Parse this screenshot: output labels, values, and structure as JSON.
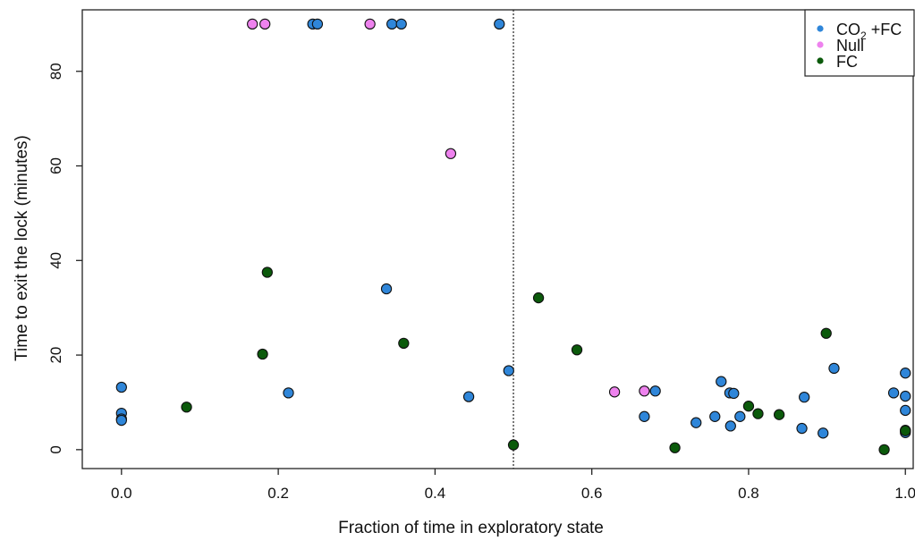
{
  "chart_data": {
    "type": "scatter",
    "xlabel": "Fraction of time in exploratory state",
    "ylabel": "Time to exit the lock (minutes)",
    "xlim": [
      -0.05,
      1.01
    ],
    "ylim": [
      -4,
      93
    ],
    "x_ticks": [
      "0.0",
      "0.2",
      "0.4",
      "0.6",
      "0.8",
      "1.0"
    ],
    "x_tick_values": [
      0,
      0.2,
      0.4,
      0.6,
      0.8,
      1.0
    ],
    "y_ticks": [
      "0",
      "20",
      "40",
      "60",
      "80"
    ],
    "y_tick_values": [
      0,
      20,
      40,
      60,
      80
    ],
    "reference_line": {
      "x": 0.5,
      "style": "dotted"
    },
    "grid": false,
    "legend_position": "top-right",
    "legend": [
      {
        "base": "CO",
        "sub": "2",
        "rest": " +FC",
        "color": "#2f86d9"
      },
      {
        "base": "Null",
        "sub": "",
        "rest": "",
        "color": "#ee82ee"
      },
      {
        "base": "FC",
        "sub": "",
        "rest": "",
        "color": "#0b5a0b"
      }
    ],
    "series": [
      {
        "name": "CO2 +FC",
        "color": "#2f86d9",
        "points": [
          [
            0.244,
            90
          ],
          [
            0.25,
            90
          ],
          [
            0.345,
            90
          ],
          [
            0.357,
            90
          ],
          [
            0.482,
            90
          ],
          [
            0.338,
            34
          ],
          [
            0.0,
            13.2
          ],
          [
            0.0,
            7.7
          ],
          [
            0.0,
            6.5
          ],
          [
            0.0,
            6.2
          ],
          [
            0.213,
            12.0
          ],
          [
            0.443,
            11.2
          ],
          [
            0.494,
            16.7
          ],
          [
            0.667,
            7.0
          ],
          [
            0.681,
            12.4
          ],
          [
            0.733,
            5.7
          ],
          [
            0.757,
            7.0
          ],
          [
            0.765,
            14.4
          ],
          [
            0.776,
            12.0
          ],
          [
            0.781,
            11.9
          ],
          [
            0.777,
            5.0
          ],
          [
            0.789,
            7.0
          ],
          [
            0.868,
            4.5
          ],
          [
            0.871,
            11.1
          ],
          [
            0.895,
            3.5
          ],
          [
            0.909,
            17.2
          ],
          [
            0.985,
            12.0
          ],
          [
            1.0,
            16.2
          ],
          [
            1.0,
            11.3
          ],
          [
            1.0,
            8.3
          ],
          [
            1.0,
            3.6
          ]
        ]
      },
      {
        "name": "Null",
        "color": "#ee82ee",
        "points": [
          [
            0.167,
            90
          ],
          [
            0.183,
            90
          ],
          [
            0.317,
            90
          ],
          [
            0.42,
            62.6
          ],
          [
            0.629,
            12.2
          ],
          [
            0.667,
            12.4
          ]
        ]
      },
      {
        "name": "FC",
        "color": "#0b5a0b",
        "points": [
          [
            0.083,
            9.0
          ],
          [
            0.18,
            20.2
          ],
          [
            0.186,
            37.5
          ],
          [
            0.36,
            22.5
          ],
          [
            0.5,
            1.0
          ],
          [
            0.532,
            32.1
          ],
          [
            0.581,
            21.1
          ],
          [
            0.706,
            0.4
          ],
          [
            0.8,
            9.2
          ],
          [
            0.812,
            7.6
          ],
          [
            0.839,
            7.4
          ],
          [
            0.899,
            24.6
          ],
          [
            0.973,
            0.0
          ],
          [
            1.0,
            4.1
          ],
          [
            1.0,
            4.0
          ]
        ]
      }
    ]
  }
}
